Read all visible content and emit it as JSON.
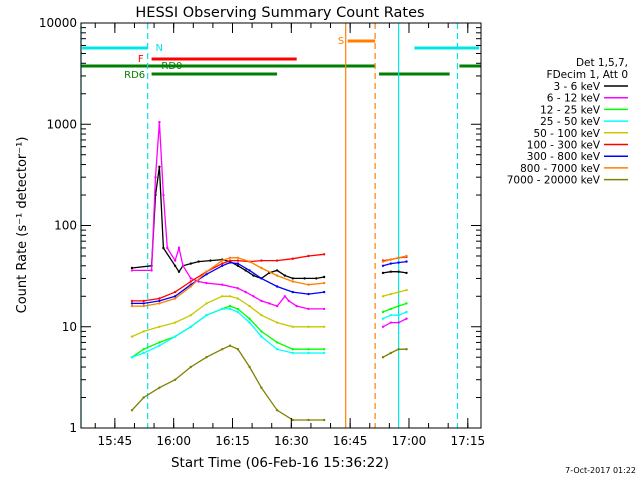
{
  "chart_data": {
    "type": "line",
    "title": "HESSI Observing Summary Count Rates",
    "xlabel": "Start Time (06-Feb-16 15:36:22)",
    "ylabel": "Count Rate (s⁻¹ detector⁻¹)",
    "yscale": "log",
    "ylim": [
      1,
      10000
    ],
    "xlim_minutes_after_15_36_22": [
      0,
      102
    ],
    "xticks": [
      "15:45",
      "16:00",
      "16:15",
      "16:30",
      "16:45",
      "17:00",
      "17:15"
    ],
    "yticks": [
      "1",
      "10",
      "100",
      "1000",
      "10000"
    ],
    "timestamp": "7-Oct-2017 01:22",
    "legend": {
      "header": [
        "Det 1,5,7,",
        "FDecim 1, Att 0"
      ],
      "placement": "right"
    },
    "flags": [
      {
        "label": "N",
        "color": "#00e5e5"
      },
      {
        "label": "F",
        "color": "#ff0000"
      },
      {
        "label": "RD0",
        "color": "#007f00"
      },
      {
        "label": "RD6",
        "color": "#007f00"
      },
      {
        "label": "S",
        "color": "#ff7f00"
      }
    ],
    "series": [
      {
        "name": "3 - 6 keV",
        "color": "#000000",
        "points": [
          [
            13,
            38
          ],
          [
            18,
            40
          ],
          [
            19,
            200
          ],
          [
            20,
            380
          ],
          [
            21,
            60
          ],
          [
            24,
            40
          ],
          [
            25,
            35
          ],
          [
            26,
            40
          ],
          [
            28,
            42
          ],
          [
            30,
            44
          ],
          [
            33,
            45
          ],
          [
            36,
            46
          ],
          [
            38,
            44
          ],
          [
            40,
            40
          ],
          [
            42,
            36
          ],
          [
            44,
            32
          ],
          [
            46,
            30
          ],
          [
            48,
            34
          ],
          [
            50,
            36
          ],
          [
            52,
            32
          ],
          [
            54,
            30
          ],
          [
            57,
            30
          ],
          [
            60,
            30
          ],
          [
            62,
            31
          ],
          [
            77,
            34
          ],
          [
            79,
            35
          ],
          [
            81,
            35
          ],
          [
            83,
            34
          ]
        ]
      },
      {
        "name": "6 - 12 keV",
        "color": "#ff00ff",
        "points": [
          [
            13,
            36
          ],
          [
            18,
            36
          ],
          [
            19,
            300
          ],
          [
            20,
            1050
          ],
          [
            21,
            200
          ],
          [
            22,
            60
          ],
          [
            24,
            45
          ],
          [
            25,
            60
          ],
          [
            26,
            40
          ],
          [
            28,
            30
          ],
          [
            30,
            28
          ],
          [
            32,
            27
          ],
          [
            36,
            26
          ],
          [
            40,
            24
          ],
          [
            42,
            22
          ],
          [
            44,
            20
          ],
          [
            46,
            18
          ],
          [
            48,
            17
          ],
          [
            50,
            16
          ],
          [
            52,
            20
          ],
          [
            53,
            18
          ],
          [
            55,
            16
          ],
          [
            58,
            15
          ],
          [
            62,
            15
          ],
          [
            77,
            10
          ],
          [
            79,
            11
          ],
          [
            81,
            11
          ],
          [
            83,
            12
          ]
        ]
      },
      {
        "name": "12 - 25 keV",
        "color": "#00ff00",
        "points": [
          [
            13,
            5
          ],
          [
            16,
            6
          ],
          [
            20,
            7
          ],
          [
            24,
            8
          ],
          [
            28,
            10
          ],
          [
            32,
            13
          ],
          [
            36,
            15
          ],
          [
            38,
            16
          ],
          [
            40,
            15
          ],
          [
            43,
            12
          ],
          [
            46,
            9
          ],
          [
            50,
            7
          ],
          [
            54,
            6
          ],
          [
            58,
            6
          ],
          [
            62,
            6
          ],
          [
            77,
            14
          ],
          [
            79,
            15
          ],
          [
            81,
            16
          ],
          [
            83,
            17
          ]
        ]
      },
      {
        "name": "25 - 50 keV",
        "color": "#00ffff",
        "points": [
          [
            13,
            5
          ],
          [
            16,
            5.5
          ],
          [
            20,
            6.5
          ],
          [
            24,
            8
          ],
          [
            28,
            10
          ],
          [
            32,
            13
          ],
          [
            36,
            15
          ],
          [
            38,
            15
          ],
          [
            40,
            14
          ],
          [
            43,
            11
          ],
          [
            46,
            8
          ],
          [
            50,
            6
          ],
          [
            54,
            5.5
          ],
          [
            58,
            5.5
          ],
          [
            62,
            5.5
          ],
          [
            77,
            12
          ],
          [
            79,
            13
          ],
          [
            81,
            13
          ],
          [
            83,
            14
          ]
        ]
      },
      {
        "name": "50 - 100 keV",
        "color": "#c8c800",
        "points": [
          [
            13,
            8
          ],
          [
            16,
            9
          ],
          [
            20,
            10
          ],
          [
            24,
            11
          ],
          [
            28,
            13
          ],
          [
            32,
            17
          ],
          [
            36,
            20
          ],
          [
            38,
            20
          ],
          [
            40,
            19
          ],
          [
            43,
            16
          ],
          [
            46,
            13
          ],
          [
            50,
            11
          ],
          [
            54,
            10
          ],
          [
            58,
            10
          ],
          [
            62,
            10
          ],
          [
            77,
            20
          ],
          [
            79,
            21
          ],
          [
            81,
            22
          ],
          [
            83,
            23
          ]
        ]
      },
      {
        "name": "100 - 300 keV",
        "color": "#ff0000",
        "points": [
          [
            13,
            18
          ],
          [
            16,
            18
          ],
          [
            20,
            19
          ],
          [
            24,
            22
          ],
          [
            28,
            28
          ],
          [
            32,
            35
          ],
          [
            36,
            42
          ],
          [
            38,
            45
          ],
          [
            40,
            45
          ],
          [
            43,
            44
          ],
          [
            46,
            45
          ],
          [
            50,
            45
          ],
          [
            54,
            47
          ],
          [
            58,
            50
          ],
          [
            62,
            52
          ],
          [
            77,
            45
          ],
          [
            79,
            46
          ],
          [
            81,
            48
          ],
          [
            83,
            49
          ]
        ]
      },
      {
        "name": "300 - 800 keV",
        "color": "#0000ff",
        "points": [
          [
            13,
            17
          ],
          [
            16,
            17
          ],
          [
            20,
            18
          ],
          [
            24,
            20
          ],
          [
            28,
            26
          ],
          [
            32,
            33
          ],
          [
            36,
            40
          ],
          [
            38,
            43
          ],
          [
            40,
            42
          ],
          [
            43,
            36
          ],
          [
            46,
            30
          ],
          [
            50,
            25
          ],
          [
            54,
            22
          ],
          [
            58,
            21
          ],
          [
            62,
            22
          ],
          [
            77,
            40
          ],
          [
            79,
            42
          ],
          [
            81,
            43
          ],
          [
            83,
            44
          ]
        ]
      },
      {
        "name": "800 - 7000 keV",
        "color": "#ff7f00",
        "points": [
          [
            13,
            16
          ],
          [
            16,
            16
          ],
          [
            20,
            17
          ],
          [
            24,
            19
          ],
          [
            28,
            25
          ],
          [
            32,
            35
          ],
          [
            36,
            45
          ],
          [
            38,
            48
          ],
          [
            40,
            48
          ],
          [
            43,
            44
          ],
          [
            46,
            38
          ],
          [
            50,
            32
          ],
          [
            54,
            28
          ],
          [
            58,
            26
          ],
          [
            62,
            27
          ],
          [
            77,
            44
          ],
          [
            79,
            46
          ],
          [
            81,
            48
          ],
          [
            83,
            50
          ]
        ]
      },
      {
        "name": "7000 - 20000 keV",
        "color": "#7f7f00",
        "points": [
          [
            13,
            1.5
          ],
          [
            16,
            2
          ],
          [
            20,
            2.5
          ],
          [
            24,
            3
          ],
          [
            28,
            4
          ],
          [
            32,
            5
          ],
          [
            36,
            6
          ],
          [
            38,
            6.5
          ],
          [
            40,
            6
          ],
          [
            43,
            4
          ],
          [
            46,
            2.5
          ],
          [
            50,
            1.5
          ],
          [
            54,
            1.2
          ],
          [
            58,
            1.2
          ],
          [
            62,
            1.2
          ],
          [
            77,
            5
          ],
          [
            79,
            5.5
          ],
          [
            81,
            6
          ],
          [
            83,
            6
          ]
        ]
      }
    ]
  }
}
